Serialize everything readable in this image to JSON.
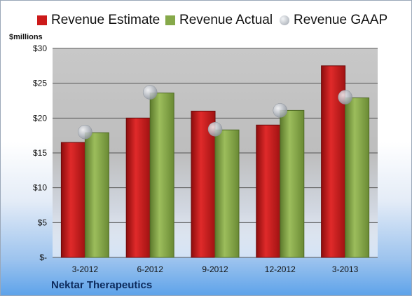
{
  "chart_data": {
    "type": "bar",
    "categories": [
      "3-2012",
      "6-2012",
      "9-2012",
      "12-2012",
      "3-2013"
    ],
    "series": [
      {
        "name": "Revenue Estimate",
        "kind": "bar",
        "color": "#cc1a1a",
        "values": [
          16.5,
          20.0,
          21.0,
          19.0,
          27.5
        ]
      },
      {
        "name": "Revenue Actual",
        "kind": "bar",
        "color": "#86a94a",
        "values": [
          17.9,
          23.6,
          18.3,
          21.1,
          22.9
        ]
      },
      {
        "name": "Revenue GAAP",
        "kind": "marker",
        "color": "#b9bec7",
        "values": [
          18.0,
          23.7,
          18.4,
          21.1,
          23.0
        ]
      }
    ],
    "ylabel": "$millions",
    "xlabel": "",
    "ylim": [
      0,
      30
    ],
    "yticks": [
      0,
      5,
      10,
      15,
      20,
      25,
      30
    ],
    "ytick_labels": [
      "$-",
      "$5",
      "$10",
      "$15",
      "$20",
      "$25",
      "$30"
    ],
    "grid": true,
    "legend_position": "top"
  },
  "footer": {
    "company": "Nektar Therapeutics"
  }
}
